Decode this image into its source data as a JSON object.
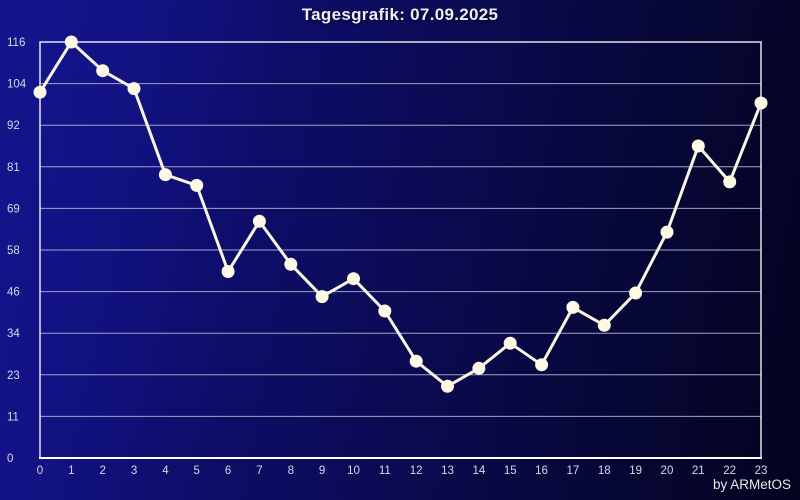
{
  "page": {
    "title": "Tagesgrafik: 07.09.2025"
  },
  "footer": {
    "credit": "by ARMetOS"
  },
  "chart_data": {
    "type": "line",
    "title": "Tagesgrafik: 07.09.2025",
    "x": [
      0,
      1,
      2,
      3,
      4,
      5,
      6,
      7,
      8,
      9,
      10,
      11,
      12,
      13,
      14,
      15,
      16,
      17,
      18,
      19,
      20,
      21,
      22,
      23
    ],
    "values": [
      102,
      116,
      108,
      103,
      79,
      76,
      52,
      66,
      54,
      45,
      50,
      41,
      27,
      20,
      25,
      32,
      26,
      42,
      37,
      46,
      63,
      87,
      77,
      99
    ],
    "xlabel": "",
    "ylabel": "",
    "ylim": [
      0,
      116
    ],
    "y_tick_labels": [
      "116",
      "104",
      "92",
      "81",
      "69",
      "58",
      "46",
      "34",
      "23",
      "11",
      "0"
    ],
    "x_tick_labels": [
      "0",
      "1",
      "2",
      "3",
      "4",
      "5",
      "6",
      "7",
      "8",
      "9",
      "10",
      "11",
      "12",
      "13",
      "14",
      "15",
      "16",
      "17",
      "18",
      "19",
      "20",
      "21",
      "22",
      "23"
    ],
    "grid": "horizontal",
    "legend": "none",
    "marker": "circle",
    "colors": {
      "line": "#f9f5e3",
      "marker_fill": "#fdf9e4",
      "grid": "#9fa3c6",
      "border": "#f2f2f4",
      "tick_label": "#d7d8e6",
      "title": "#ecedf6",
      "background_left": "#13138a",
      "background_right": "#04041f"
    }
  }
}
